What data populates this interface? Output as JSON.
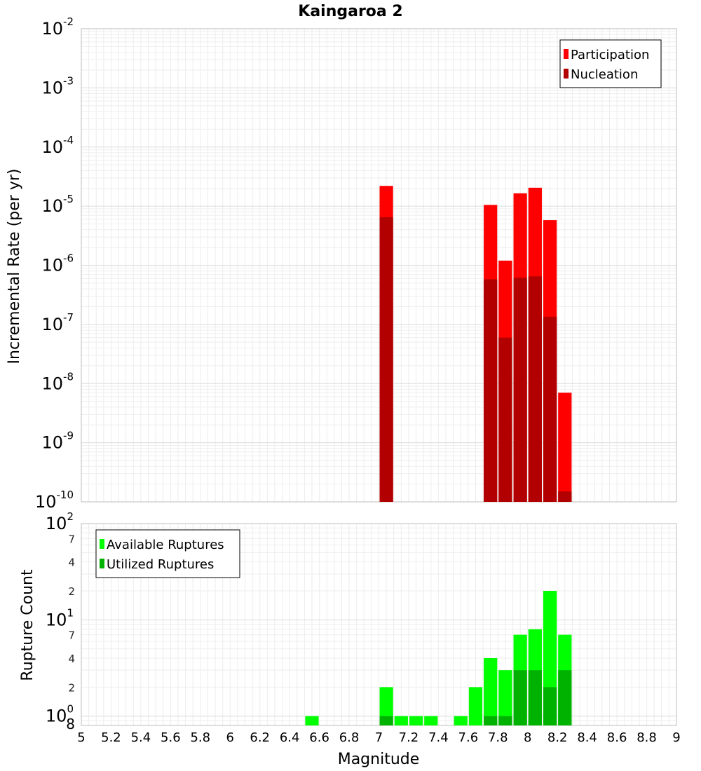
{
  "chart_data": [
    {
      "type": "bar",
      "title": "Kaingaroa 2",
      "xlabel": "",
      "ylabel": "Incremental Rate (per yr)",
      "y_scale": "log",
      "ylim": [
        1e-10,
        0.01
      ],
      "y_tick_exponents": [
        -10,
        -9,
        -8,
        -7,
        -6,
        -5,
        -4,
        -3,
        -2
      ],
      "y_tick_base": "10",
      "legend_position": "top-right",
      "grid": true,
      "bin_width": 0.1,
      "series": [
        {
          "name": "Participation",
          "color": "#ff0000",
          "x": [
            7.05,
            7.75,
            7.85,
            7.95,
            8.05,
            8.15,
            8.25
          ],
          "values": [
            2.2e-05,
            1.05e-05,
            1.2e-06,
            1.65e-05,
            2.05e-05,
            5.8e-06,
            7e-09
          ]
        },
        {
          "name": "Nucleation",
          "color": "#b20000",
          "x": [
            7.05,
            7.75,
            7.85,
            7.95,
            8.05,
            8.15,
            8.25
          ],
          "values": [
            6.5e-06,
            5.8e-07,
            6e-08,
            6.2e-07,
            6.5e-07,
            1.35e-07,
            1.5e-10
          ]
        }
      ]
    },
    {
      "type": "bar",
      "title": "",
      "xlabel": "Magnitude",
      "ylabel": "Rupture Count",
      "y_scale": "log",
      "ylim": [
        0.8,
        100
      ],
      "y_tick_exponents": [
        0,
        1,
        2
      ],
      "y_tick_base": "10",
      "y_minor_labels": [
        "2",
        "4",
        "7",
        "2",
        "4",
        "7",
        "8"
      ],
      "y_minor_values": [
        2,
        4,
        7,
        20,
        40,
        70,
        0.8
      ],
      "xlim": [
        5,
        9
      ],
      "x_ticks": [
        "5",
        "5.2",
        "5.4",
        "5.6",
        "5.8",
        "6",
        "6.2",
        "6.4",
        "6.6",
        "6.8",
        "7",
        "7.2",
        "7.4",
        "7.6",
        "7.8",
        "8",
        "8.2",
        "8.4",
        "8.6",
        "8.8",
        "9"
      ],
      "x_tick_values": [
        5,
        5.2,
        5.4,
        5.6,
        5.8,
        6,
        6.2,
        6.4,
        6.6,
        6.8,
        7,
        7.2,
        7.4,
        7.6,
        7.8,
        8,
        8.2,
        8.4,
        8.6,
        8.8,
        9
      ],
      "legend_position": "top-left",
      "grid": true,
      "bin_width": 0.1,
      "series": [
        {
          "name": "Available Ruptures",
          "color": "#00ff00",
          "x": [
            6.55,
            7.05,
            7.15,
            7.25,
            7.35,
            7.55,
            7.65,
            7.75,
            7.85,
            7.95,
            8.05,
            8.15,
            8.25
          ],
          "values": [
            1,
            2,
            1,
            1,
            1,
            1,
            2,
            4,
            3,
            7,
            8,
            20,
            7
          ]
        },
        {
          "name": "Utilized Ruptures",
          "color": "#00b200",
          "x": [
            7.05,
            7.75,
            7.85,
            7.95,
            8.05,
            8.15,
            8.25
          ],
          "values": [
            1,
            1,
            1,
            3,
            3,
            2,
            3
          ]
        }
      ]
    }
  ]
}
